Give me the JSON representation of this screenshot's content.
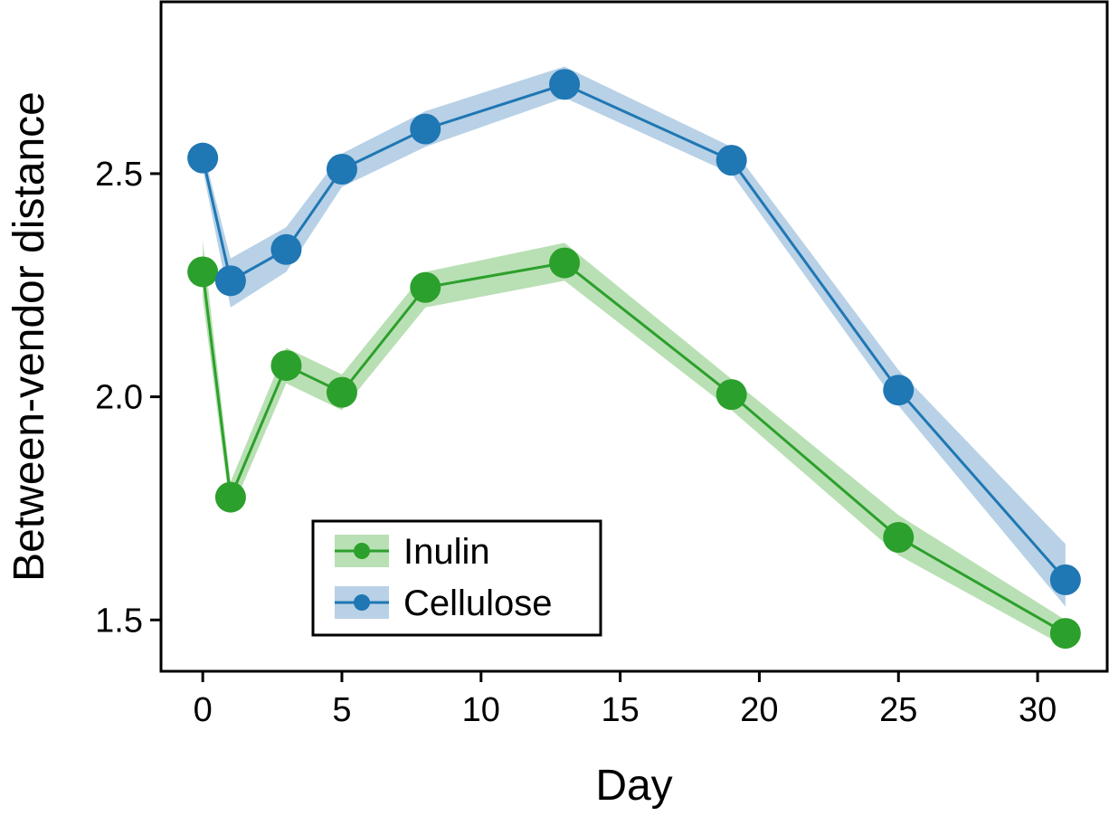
{
  "chart_data": {
    "type": "line",
    "xlabel": "Day",
    "ylabel": "Between-vendor distance",
    "xlim": [
      -1.5,
      32.5
    ],
    "ylim": [
      1.385,
      2.885
    ],
    "xticks": [
      0,
      5,
      10,
      15,
      20,
      25,
      30
    ],
    "yticks": [
      1.5,
      2.0,
      2.5
    ],
    "xtick_labels": [
      "0",
      "5",
      "10",
      "15",
      "20",
      "25",
      "30"
    ],
    "ytick_labels": [
      "1.5",
      "2.0",
      "2.5"
    ],
    "grid": false,
    "legend_position": "lower-left",
    "series": [
      {
        "name": "Inulin",
        "color": "#2ca02c",
        "band_color": "#b9e0b4",
        "x": [
          0,
          1,
          3,
          5,
          8,
          13,
          19,
          25,
          31
        ],
        "y": [
          2.28,
          1.775,
          2.07,
          2.01,
          2.245,
          2.3,
          2.005,
          1.685,
          1.47
        ],
        "y_lower": [
          2.22,
          1.74,
          2.03,
          1.97,
          2.2,
          2.26,
          1.97,
          1.645,
          1.44
        ],
        "y_upper": [
          2.35,
          1.81,
          2.11,
          2.05,
          2.28,
          2.345,
          2.04,
          1.735,
          1.5
        ]
      },
      {
        "name": "Cellulose",
        "color": "#1f77b4",
        "band_color": "#b8d1e6",
        "x": [
          0,
          1,
          3,
          5,
          8,
          13,
          19,
          25,
          31
        ],
        "y": [
          2.535,
          2.26,
          2.33,
          2.51,
          2.6,
          2.7,
          2.53,
          2.015,
          1.59
        ],
        "y_lower": [
          2.51,
          2.2,
          2.28,
          2.47,
          2.56,
          2.67,
          2.5,
          1.98,
          1.53
        ],
        "y_upper": [
          2.555,
          2.31,
          2.38,
          2.545,
          2.64,
          2.74,
          2.56,
          2.06,
          1.67
        ]
      }
    ]
  }
}
